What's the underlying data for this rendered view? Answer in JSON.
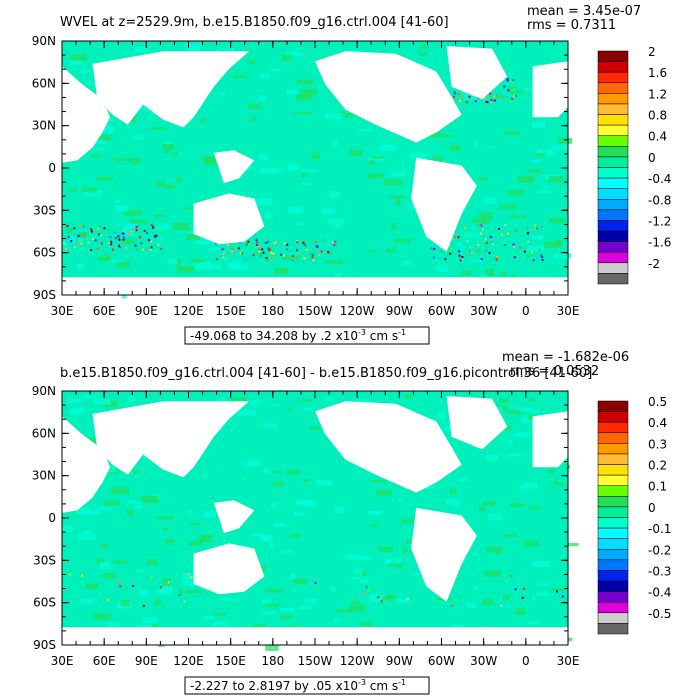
{
  "panels": [
    {
      "title": "WVEL at z=2529.9m, b.e15.B1850.f09_g16.ctrl.004 [41-60]",
      "mean_label": "mean = 3.45e-07",
      "rms_label": "rms = 0.7311",
      "range_text": "-49.068 to 34.208 by .2 x10",
      "range_exp": "-3",
      "range_unit": " cm s",
      "range_unit_exp": "-1",
      "colorbar_labels": [
        "2",
        "1.6",
        "1.2",
        "0.8",
        "0.4",
        "0",
        "-0.4",
        "-0.8",
        "-1.2",
        "-1.6",
        "-2"
      ]
    },
    {
      "title": "b.e15.B1850.f09_g16.ctrl.004 [41-60] - b.e15.B1850.f09_g16.picontrol.36 [41-60]",
      "mean_label": "mean = -1.682e-06",
      "rms_label": "rms = 0.0532",
      "range_text": "-2.227 to 2.8197 by .05 x10",
      "range_exp": "-3",
      "range_unit": " cm s",
      "range_unit_exp": "-1",
      "colorbar_labels": [
        "0.5",
        "0.4",
        "0.3",
        "0.2",
        "0.1",
        "0",
        "-0.1",
        "-0.2",
        "-0.3",
        "-0.4",
        "-0.5"
      ]
    }
  ],
  "lat_labels": [
    "90N",
    "60N",
    "30N",
    "0",
    "30S",
    "60S",
    "90S"
  ],
  "lon_labels": [
    "30E",
    "60E",
    "90E",
    "120E",
    "150E",
    "180",
    "150W",
    "120W",
    "90W",
    "60W",
    "30W",
    "0",
    "30E"
  ],
  "colorbar_colors": [
    "#8b0000",
    "#cc0000",
    "#ff2a00",
    "#ff6600",
    "#ff9900",
    "#ffbb33",
    "#ffe000",
    "#ffff33",
    "#66ff00",
    "#22dd55",
    "#00ee99",
    "#00ffcc",
    "#00ffff",
    "#00ddff",
    "#00aaff",
    "#0077ff",
    "#0022ee",
    "#0000aa",
    "#7700cc",
    "#dd00dd",
    "#cccccc",
    "#666666"
  ],
  "ocean_colors": {
    "base": "#00f0bb",
    "land": "#ffffff",
    "patch_green": "#22dd55",
    "patch_cyan": "#00ffdd"
  }
}
